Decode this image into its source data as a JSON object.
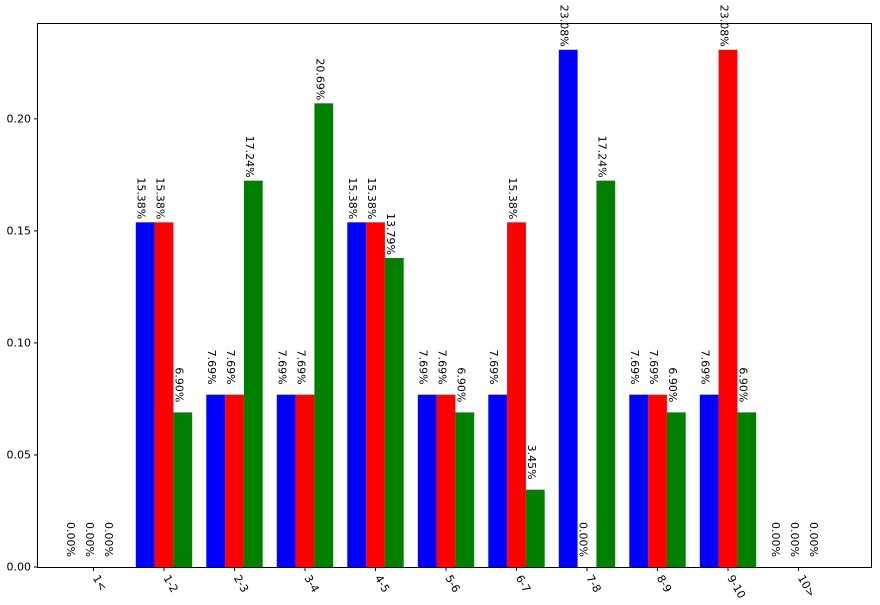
{
  "chart_data": {
    "type": "bar",
    "categories": [
      "1<",
      "1-2",
      "2-3",
      "3-4",
      "4-5",
      "5-6",
      "6-7",
      "7-8",
      "8-9",
      "9-10",
      "10>"
    ],
    "series": [
      {
        "color": "#0000ff",
        "values": [
          0.0,
          0.1538,
          0.0769,
          0.0769,
          0.1538,
          0.0769,
          0.0769,
          0.2308,
          0.0769,
          0.0769,
          0.0
        ],
        "labels": [
          "0.00%",
          "15.38%",
          "7.69%",
          "7.69%",
          "15.38%",
          "7.69%",
          "7.69%",
          "23.08%",
          "7.69%",
          "7.69%",
          "0.00%"
        ]
      },
      {
        "color": "#ff0000",
        "values": [
          0.0,
          0.1538,
          0.0769,
          0.0769,
          0.1538,
          0.0769,
          0.1538,
          0.0,
          0.0769,
          0.2308,
          0.0
        ],
        "labels": [
          "0.00%",
          "15.38%",
          "7.69%",
          "7.69%",
          "15.38%",
          "7.69%",
          "15.38%",
          "0.00%",
          "7.69%",
          "23.08%",
          "0.00%"
        ]
      },
      {
        "color": "#008000",
        "values": [
          0.0,
          0.069,
          0.1724,
          0.2069,
          0.1379,
          0.069,
          0.0345,
          0.1724,
          0.069,
          0.069,
          0.0
        ],
        "labels": [
          "0.00%",
          "6.90%",
          "17.24%",
          "20.69%",
          "13.79%",
          "6.90%",
          "3.45%",
          "17.24%",
          "6.90%",
          "6.90%",
          "0.00%"
        ]
      }
    ],
    "yticks": [
      "0.00",
      "0.05",
      "0.10",
      "0.15",
      "0.20"
    ],
    "ylim": [
      0,
      0.2423
    ],
    "grid": false,
    "title": "",
    "xlabel": "",
    "ylabel": ""
  }
}
